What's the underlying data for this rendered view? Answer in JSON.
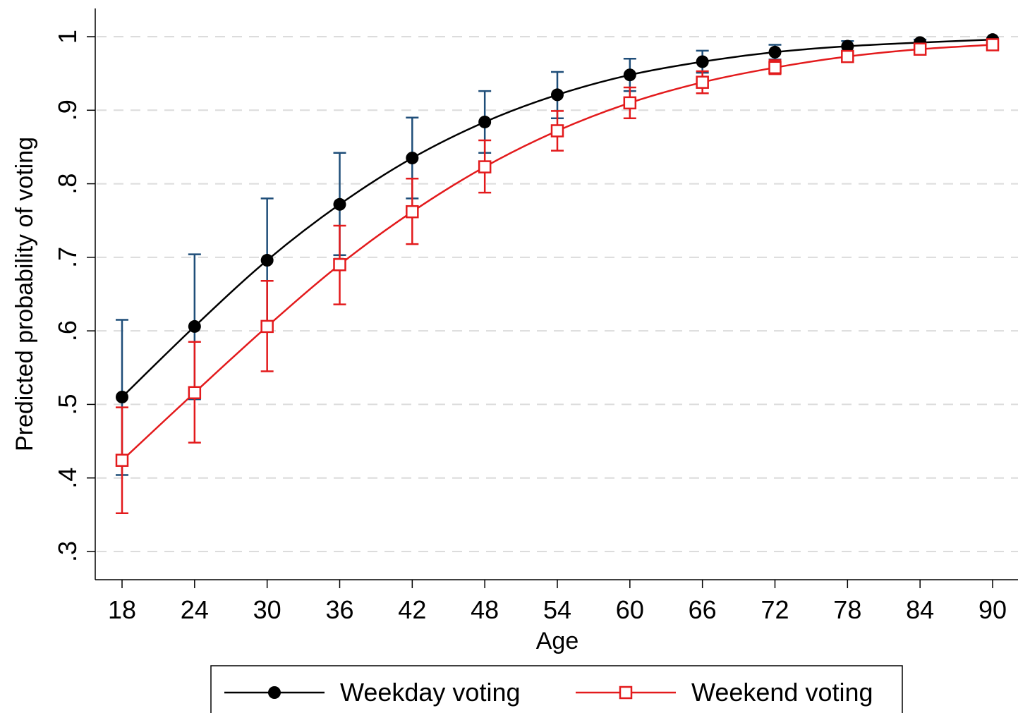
{
  "chart_data": {
    "type": "line",
    "xlabel": "Age",
    "ylabel": "Predicted probability of voting",
    "xlim": [
      18,
      90
    ],
    "ylim": [
      0.3,
      1.0
    ],
    "x_ticks": [
      18,
      24,
      30,
      36,
      42,
      48,
      54,
      60,
      66,
      72,
      78,
      84,
      90
    ],
    "y_ticks": [
      {
        "value": 0.3,
        "label": ".3"
      },
      {
        "value": 0.4,
        "label": ".4"
      },
      {
        "value": 0.5,
        "label": ".5"
      },
      {
        "value": 0.6,
        "label": ".6"
      },
      {
        "value": 0.7,
        "label": ".7"
      },
      {
        "value": 0.8,
        "label": ".8"
      },
      {
        "value": 0.9,
        "label": ".9"
      },
      {
        "value": 1.0,
        "label": "1"
      }
    ],
    "grid": "horizontal dashed",
    "legend_position": "bottom",
    "x": [
      18,
      24,
      30,
      36,
      42,
      48,
      54,
      60,
      66,
      72,
      78,
      84,
      90
    ],
    "series": [
      {
        "name": "Weekday voting",
        "color": "#000000",
        "error_bar_color": "#1f4e79",
        "marker": "filled-circle",
        "values": [
          0.51,
          0.606,
          0.696,
          0.772,
          0.835,
          0.884,
          0.921,
          0.948,
          0.966,
          0.979,
          0.987,
          0.992,
          0.996
        ],
        "ci_low": [
          0.404,
          0.507,
          0.612,
          0.703,
          0.78,
          0.842,
          0.889,
          0.926,
          0.951,
          0.969,
          0.981,
          0.989,
          0.993
        ],
        "ci_high": [
          0.615,
          0.704,
          0.78,
          0.842,
          0.89,
          0.926,
          0.952,
          0.97,
          0.981,
          0.989,
          0.994,
          0.996,
          0.998
        ]
      },
      {
        "name": "Weekend voting",
        "color": "#e31a1c",
        "error_bar_color": "#e31a1c",
        "marker": "hollow-square",
        "values": [
          0.424,
          0.516,
          0.606,
          0.69,
          0.762,
          0.823,
          0.872,
          0.91,
          0.938,
          0.958,
          0.973,
          0.983,
          0.989
        ],
        "ci_low": [
          0.352,
          0.448,
          0.545,
          0.636,
          0.718,
          0.788,
          0.845,
          0.889,
          0.923,
          0.949,
          0.966,
          0.978,
          0.986
        ],
        "ci_high": [
          0.496,
          0.585,
          0.668,
          0.743,
          0.807,
          0.859,
          0.899,
          0.931,
          0.953,
          0.968,
          0.979,
          0.987,
          0.992
        ]
      }
    ]
  }
}
